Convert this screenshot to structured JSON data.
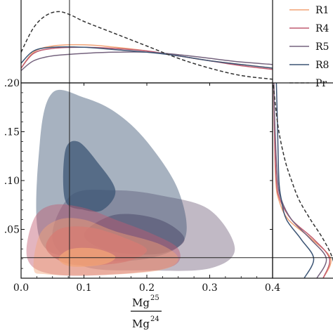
{
  "chart_data": {
    "type": "contour-corner",
    "xlabel": {
      "base_top": "Mg",
      "sup_top": "25",
      "base_bottom": "Mg",
      "sup_bottom": "24"
    },
    "xlim": [
      0.0,
      0.4
    ],
    "ylim": [
      0.0,
      0.2
    ],
    "x_ticks": [
      "0.0",
      "0.1",
      "0.2",
      "0.3",
      "0.4"
    ],
    "y_ticks": [
      ".05",
      ".10",
      ".15",
      ".20"
    ],
    "reference_x": 0.077,
    "reference_y": 0.021,
    "legend": [
      "R1",
      "R4",
      "R5",
      "R8",
      "Pr"
    ],
    "series": [
      {
        "name": "R1",
        "color": "#f2a477",
        "contour_outer": [
          [
            0.02,
            0.01
          ],
          [
            0.03,
            0.045
          ],
          [
            0.06,
            0.06
          ],
          [
            0.1,
            0.06
          ],
          [
            0.15,
            0.048
          ],
          [
            0.22,
            0.035
          ],
          [
            0.25,
            0.02
          ],
          [
            0.22,
            0.008
          ],
          [
            0.12,
            0.003
          ],
          [
            0.04,
            0.004
          ]
        ],
        "contour_inner": [
          [
            0.06,
            0.02
          ],
          [
            0.08,
            0.03
          ],
          [
            0.12,
            0.03
          ],
          [
            0.15,
            0.022
          ],
          [
            0.13,
            0.014
          ],
          [
            0.08,
            0.012
          ]
        ],
        "marg_x": [
          [
            0.0,
            0.012
          ],
          [
            0.02,
            0.025
          ],
          [
            0.05,
            0.03
          ],
          [
            0.1,
            0.031
          ],
          [
            0.15,
            0.029
          ],
          [
            0.2,
            0.026
          ],
          [
            0.25,
            0.022
          ],
          [
            0.3,
            0.018
          ],
          [
            0.35,
            0.015
          ],
          [
            0.4,
            0.012
          ]
        ],
        "marg_y": [
          [
            0.0,
            0.8
          ],
          [
            0.02,
            0.92
          ],
          [
            0.04,
            0.62
          ],
          [
            0.06,
            0.25
          ],
          [
            0.08,
            0.1
          ],
          [
            0.1,
            0.05
          ],
          [
            0.15,
            0.03
          ],
          [
            0.2,
            0.02
          ]
        ]
      },
      {
        "name": "R4",
        "color": "#c05b70",
        "contour_outer": [
          [
            0.01,
            0.02
          ],
          [
            0.02,
            0.06
          ],
          [
            0.05,
            0.075
          ],
          [
            0.1,
            0.072
          ],
          [
            0.15,
            0.06
          ],
          [
            0.21,
            0.045
          ],
          [
            0.25,
            0.03
          ],
          [
            0.24,
            0.012
          ],
          [
            0.15,
            0.004
          ],
          [
            0.05,
            0.004
          ]
        ],
        "contour_inner": [
          [
            0.04,
            0.03
          ],
          [
            0.06,
            0.05
          ],
          [
            0.11,
            0.052
          ],
          [
            0.17,
            0.04
          ],
          [
            0.2,
            0.028
          ],
          [
            0.16,
            0.016
          ],
          [
            0.08,
            0.014
          ]
        ],
        "marg_x": [
          [
            0.0,
            0.012
          ],
          [
            0.02,
            0.024
          ],
          [
            0.05,
            0.028
          ],
          [
            0.1,
            0.029
          ],
          [
            0.15,
            0.028
          ],
          [
            0.2,
            0.026
          ],
          [
            0.25,
            0.022
          ],
          [
            0.3,
            0.018
          ],
          [
            0.35,
            0.014
          ],
          [
            0.4,
            0.011
          ]
        ],
        "marg_y": [
          [
            0.0,
            0.8
          ],
          [
            0.02,
            0.9
          ],
          [
            0.04,
            0.65
          ],
          [
            0.06,
            0.3
          ],
          [
            0.08,
            0.12
          ],
          [
            0.1,
            0.06
          ],
          [
            0.15,
            0.03
          ],
          [
            0.2,
            0.02
          ]
        ]
      },
      {
        "name": "R5",
        "color": "#75637e",
        "contour_outer": [
          [
            0.05,
            0.04
          ],
          [
            0.08,
            0.085
          ],
          [
            0.15,
            0.09
          ],
          [
            0.22,
            0.085
          ],
          [
            0.3,
            0.07
          ],
          [
            0.34,
            0.03
          ],
          [
            0.3,
            0.01
          ],
          [
            0.2,
            0.008
          ],
          [
            0.1,
            0.012
          ]
        ],
        "contour_inner": [
          [
            0.1,
            0.045
          ],
          [
            0.15,
            0.065
          ],
          [
            0.22,
            0.06
          ],
          [
            0.26,
            0.04
          ],
          [
            0.22,
            0.025
          ],
          [
            0.14,
            0.028
          ]
        ],
        "marg_x": [
          [
            0.0,
            0.01
          ],
          [
            0.02,
            0.018
          ],
          [
            0.05,
            0.022
          ],
          [
            0.1,
            0.024
          ],
          [
            0.15,
            0.025
          ],
          [
            0.2,
            0.025
          ],
          [
            0.25,
            0.023
          ],
          [
            0.3,
            0.02
          ],
          [
            0.35,
            0.017
          ],
          [
            0.4,
            0.015
          ]
        ],
        "marg_y": [
          [
            0.0,
            0.7
          ],
          [
            0.02,
            0.85
          ],
          [
            0.04,
            0.6
          ],
          [
            0.06,
            0.3
          ],
          [
            0.08,
            0.14
          ],
          [
            0.1,
            0.08
          ],
          [
            0.15,
            0.04
          ],
          [
            0.2,
            0.02
          ]
        ]
      },
      {
        "name": "R8",
        "color": "#3b5474",
        "contour_outer": [
          [
            0.03,
            0.04
          ],
          [
            0.03,
            0.14
          ],
          [
            0.05,
            0.19
          ],
          [
            0.1,
            0.185
          ],
          [
            0.15,
            0.17
          ],
          [
            0.2,
            0.14
          ],
          [
            0.25,
            0.09
          ],
          [
            0.26,
            0.04
          ],
          [
            0.2,
            0.02
          ],
          [
            0.1,
            0.02
          ]
        ],
        "contour_inner": [
          [
            0.07,
            0.08
          ],
          [
            0.07,
            0.13
          ],
          [
            0.09,
            0.14
          ],
          [
            0.12,
            0.12
          ],
          [
            0.15,
            0.09
          ],
          [
            0.13,
            0.07
          ],
          [
            0.1,
            0.07
          ]
        ],
        "marg_x": [
          [
            0.0,
            0.016
          ],
          [
            0.02,
            0.026
          ],
          [
            0.05,
            0.029
          ],
          [
            0.1,
            0.029
          ],
          [
            0.15,
            0.027
          ],
          [
            0.2,
            0.025
          ],
          [
            0.25,
            0.022
          ],
          [
            0.3,
            0.018
          ],
          [
            0.35,
            0.015
          ],
          [
            0.4,
            0.012
          ]
        ],
        "marg_y": [
          [
            0.0,
            0.5
          ],
          [
            0.02,
            0.65
          ],
          [
            0.04,
            0.45
          ],
          [
            0.06,
            0.22
          ],
          [
            0.08,
            0.14
          ],
          [
            0.1,
            0.1
          ],
          [
            0.15,
            0.08
          ],
          [
            0.2,
            0.06
          ]
        ]
      },
      {
        "name": "Pr",
        "color": "#333333",
        "dashed": true,
        "marg_x": [
          [
            0.0,
            0.025
          ],
          [
            0.02,
            0.045
          ],
          [
            0.04,
            0.055
          ],
          [
            0.06,
            0.058
          ],
          [
            0.08,
            0.055
          ],
          [
            0.1,
            0.05
          ],
          [
            0.15,
            0.04
          ],
          [
            0.2,
            0.03
          ],
          [
            0.25,
            0.02
          ],
          [
            0.3,
            0.012
          ],
          [
            0.35,
            0.006
          ],
          [
            0.4,
            0.003
          ]
        ],
        "marg_y": [
          [
            0.0,
            1.0
          ],
          [
            0.02,
            0.95
          ],
          [
            0.04,
            0.8
          ],
          [
            0.06,
            0.6
          ],
          [
            0.08,
            0.42
          ],
          [
            0.1,
            0.3
          ],
          [
            0.12,
            0.2
          ],
          [
            0.15,
            0.1
          ],
          [
            0.18,
            0.04
          ],
          [
            0.2,
            0.01
          ]
        ]
      }
    ]
  }
}
